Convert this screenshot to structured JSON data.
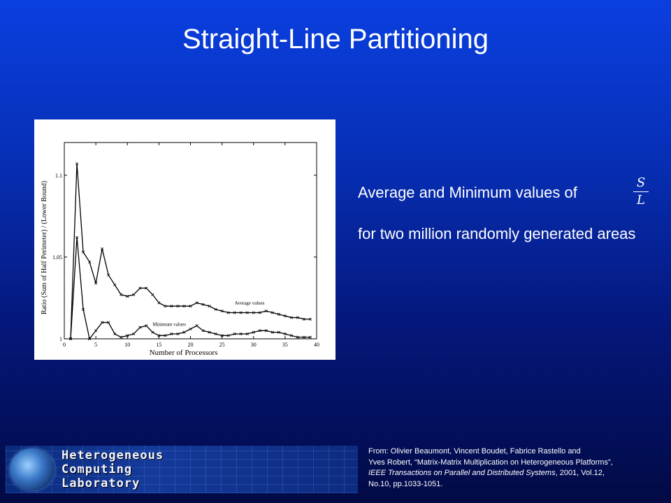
{
  "slide": {
    "title": "Straight-Line Partitioning",
    "description_line1": "Average and Minimum values of",
    "description_line2": "for two million randomly generated areas",
    "fraction": {
      "numerator": "S",
      "denominator": "L"
    }
  },
  "logo": {
    "line1": "Heterogeneous",
    "line2": "Computing",
    "line3": "Laboratory"
  },
  "citation": {
    "line1": "From: Olivier Beaumont, Vincent Boudet, Fabrice Rastello and",
    "line2": "Yves Robert, “Matrix-Matrix Multiplication on Heterogeneous Platforms”,",
    "journal": "IEEE Transactions on Parallel and Distributed Systems",
    "details": ", 2001, Vol.12,",
    "line4": "No.10, pp.1033-1051."
  },
  "chart_data": {
    "type": "line",
    "xlabel": "Number of Processors",
    "ylabel": "Ratio (Sum of Half Perimeter) / (Lower Bound)",
    "xlim": [
      0,
      40
    ],
    "ylim": [
      1,
      1.12
    ],
    "xticks": [
      "0",
      "5",
      "10",
      "15",
      "20",
      "25",
      "30",
      "35",
      "40"
    ],
    "yticks": [
      "1",
      "1.05",
      "1.1"
    ],
    "grid": false,
    "series": [
      {
        "name": "Average values",
        "x": [
          1,
          2,
          3,
          4,
          5,
          6,
          7,
          8,
          9,
          10,
          11,
          12,
          13,
          14,
          15,
          16,
          17,
          18,
          19,
          20,
          21,
          22,
          23,
          24,
          25,
          26,
          27,
          28,
          29,
          30,
          31,
          32,
          33,
          34,
          35,
          36,
          37,
          38,
          39
        ],
        "values": [
          1.0,
          1.107,
          1.053,
          1.047,
          1.034,
          1.055,
          1.039,
          1.033,
          1.027,
          1.026,
          1.027,
          1.031,
          1.031,
          1.027,
          1.022,
          1.02,
          1.02,
          1.02,
          1.02,
          1.02,
          1.022,
          1.021,
          1.02,
          1.018,
          1.017,
          1.016,
          1.016,
          1.016,
          1.016,
          1.016,
          1.016,
          1.017,
          1.016,
          1.015,
          1.014,
          1.013,
          1.013,
          1.012,
          1.012
        ]
      },
      {
        "name": "Minimum values",
        "x": [
          1,
          2,
          3,
          4,
          5,
          6,
          7,
          8,
          9,
          10,
          11,
          12,
          13,
          14,
          15,
          16,
          17,
          18,
          19,
          20,
          21,
          22,
          23,
          24,
          25,
          26,
          27,
          28,
          29,
          30,
          31,
          32,
          33,
          34,
          35,
          36,
          37,
          38,
          39
        ],
        "values": [
          1.0,
          1.062,
          1.018,
          1.0,
          1.005,
          1.01,
          1.01,
          1.003,
          1.001,
          1.002,
          1.003,
          1.007,
          1.008,
          1.004,
          1.002,
          1.002,
          1.003,
          1.003,
          1.004,
          1.006,
          1.008,
          1.005,
          1.004,
          1.003,
          1.002,
          1.002,
          1.003,
          1.003,
          1.003,
          1.004,
          1.005,
          1.005,
          1.004,
          1.004,
          1.003,
          1.002,
          1.001,
          1.001,
          1.001
        ]
      }
    ]
  }
}
